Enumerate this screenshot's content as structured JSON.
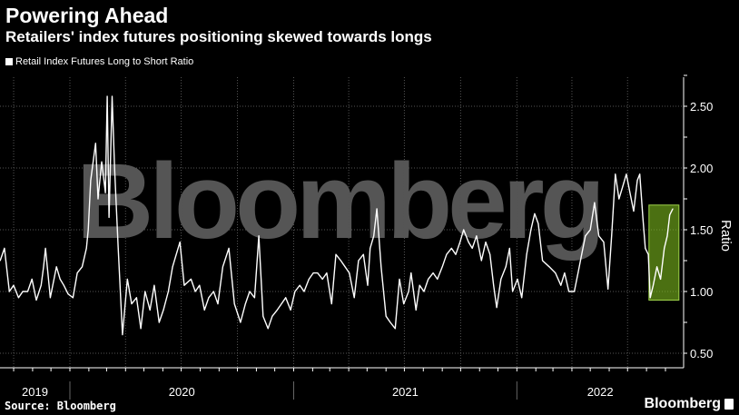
{
  "header": {
    "title": "Powering Ahead",
    "subtitle": "Retailers' index futures positioning skewed towards longs"
  },
  "footer": {
    "source": "Source: Bloomberg",
    "brand": "Bloomberg"
  },
  "watermark": "Bloomberg",
  "chart_data": {
    "type": "line",
    "title": "Powering Ahead",
    "subtitle": "Retailers' index futures positioning skewed towards longs",
    "xlabel": "",
    "ylabel": "Ratio",
    "ylim": [
      0.5,
      2.75
    ],
    "y_ticks": [
      "0.50",
      "1.00",
      "1.50",
      "2.00",
      "2.50"
    ],
    "x_tick_labels": [
      "2019",
      "2020",
      "2021",
      "2022"
    ],
    "grid": true,
    "legend_position": "top-left",
    "y_axis_side": "right",
    "colors": {
      "line": "#ffffff",
      "highlight": "#7dba1e",
      "background": "#000000",
      "watermark": "#555555"
    },
    "highlight": {
      "x_start": "2022-08-05",
      "x_end": "2022-09-23",
      "y_low": 0.93,
      "y_high": 1.7
    },
    "series": [
      {
        "name": "Retail Index Futures Long to Short Ratio",
        "points": [
          [
            "2019-09-09",
            1.25
          ],
          [
            "2019-09-16",
            1.35
          ],
          [
            "2019-09-24",
            1.0
          ],
          [
            "2019-10-01",
            1.05
          ],
          [
            "2019-10-09",
            0.95
          ],
          [
            "2019-10-16",
            1.0
          ],
          [
            "2019-10-24",
            1.0
          ],
          [
            "2019-10-31",
            1.1
          ],
          [
            "2019-11-07",
            0.93
          ],
          [
            "2019-11-15",
            1.05
          ],
          [
            "2019-11-19",
            1.2
          ],
          [
            "2019-11-22",
            1.35
          ],
          [
            "2019-11-30",
            0.95
          ],
          [
            "2019-12-10",
            1.2
          ],
          [
            "2019-12-16",
            1.1
          ],
          [
            "2019-12-22",
            1.05
          ],
          [
            "2019-12-29",
            0.98
          ],
          [
            "2020-01-06",
            0.95
          ],
          [
            "2020-01-13",
            1.15
          ],
          [
            "2020-01-21",
            1.2
          ],
          [
            "2020-01-28",
            1.35
          ],
          [
            "2020-01-31",
            1.5
          ],
          [
            "2020-02-04",
            1.9
          ],
          [
            "2020-02-12",
            2.2
          ],
          [
            "2020-02-16",
            1.75
          ],
          [
            "2020-02-22",
            2.05
          ],
          [
            "2020-02-28",
            1.8
          ],
          [
            "2020-03-02",
            2.58
          ],
          [
            "2020-03-05",
            1.6
          ],
          [
            "2020-03-10",
            2.58
          ],
          [
            "2020-03-14",
            2.0
          ],
          [
            "2020-03-20",
            1.35
          ],
          [
            "2020-03-27",
            0.65
          ],
          [
            "2020-04-04",
            1.1
          ],
          [
            "2020-04-11",
            0.9
          ],
          [
            "2020-04-19",
            0.95
          ],
          [
            "2020-04-26",
            0.7
          ],
          [
            "2020-05-03",
            1.0
          ],
          [
            "2020-05-11",
            0.85
          ],
          [
            "2020-05-18",
            1.05
          ],
          [
            "2020-05-26",
            0.75
          ],
          [
            "2020-06-02",
            0.85
          ],
          [
            "2020-06-10",
            1.0
          ],
          [
            "2020-06-17",
            1.2
          ],
          [
            "2020-06-29",
            1.4
          ],
          [
            "2020-07-06",
            1.05
          ],
          [
            "2020-07-17",
            1.1
          ],
          [
            "2020-07-24",
            1.0
          ],
          [
            "2020-07-31",
            1.05
          ],
          [
            "2020-08-08",
            0.85
          ],
          [
            "2020-08-15",
            0.95
          ],
          [
            "2020-08-23",
            1.0
          ],
          [
            "2020-08-30",
            0.9
          ],
          [
            "2020-09-07",
            1.2
          ],
          [
            "2020-09-17",
            1.35
          ],
          [
            "2020-09-26",
            0.9
          ],
          [
            "2020-10-06",
            0.75
          ],
          [
            "2020-10-14",
            0.9
          ],
          [
            "2020-10-21",
            1.0
          ],
          [
            "2020-10-29",
            0.95
          ],
          [
            "2020-11-05",
            1.45
          ],
          [
            "2020-11-12",
            0.8
          ],
          [
            "2020-11-20",
            0.7
          ],
          [
            "2020-11-27",
            0.8
          ],
          [
            "2020-12-05",
            0.85
          ],
          [
            "2020-12-12",
            0.9
          ],
          [
            "2020-12-19",
            0.95
          ],
          [
            "2020-12-27",
            0.85
          ],
          [
            "2021-01-03",
            1.0
          ],
          [
            "2021-01-11",
            1.05
          ],
          [
            "2021-01-18",
            1.0
          ],
          [
            "2021-01-26",
            1.1
          ],
          [
            "2021-02-02",
            1.15
          ],
          [
            "2021-02-09",
            1.15
          ],
          [
            "2021-02-17",
            1.1
          ],
          [
            "2021-02-24",
            1.15
          ],
          [
            "2021-03-04",
            0.9
          ],
          [
            "2021-03-11",
            1.3
          ],
          [
            "2021-03-19",
            1.25
          ],
          [
            "2021-03-26",
            1.2
          ],
          [
            "2021-04-02",
            1.15
          ],
          [
            "2021-04-10",
            0.95
          ],
          [
            "2021-04-17",
            1.25
          ],
          [
            "2021-04-25",
            1.3
          ],
          [
            "2021-05-02",
            1.05
          ],
          [
            "2021-05-06",
            1.35
          ],
          [
            "2021-05-12",
            1.45
          ],
          [
            "2021-05-17",
            1.67
          ],
          [
            "2021-05-24",
            1.2
          ],
          [
            "2021-06-01",
            0.8
          ],
          [
            "2021-06-08",
            0.75
          ],
          [
            "2021-06-16",
            0.7
          ],
          [
            "2021-06-23",
            1.1
          ],
          [
            "2021-06-30",
            0.9
          ],
          [
            "2021-07-08",
            1.0
          ],
          [
            "2021-07-12",
            1.15
          ],
          [
            "2021-07-20",
            0.85
          ],
          [
            "2021-07-26",
            1.05
          ],
          [
            "2021-08-02",
            1.0
          ],
          [
            "2021-08-09",
            1.1
          ],
          [
            "2021-08-17",
            1.15
          ],
          [
            "2021-08-24",
            1.1
          ],
          [
            "2021-09-01",
            1.2
          ],
          [
            "2021-09-08",
            1.3
          ],
          [
            "2021-09-16",
            1.35
          ],
          [
            "2021-09-23",
            1.3
          ],
          [
            "2021-09-30",
            1.4
          ],
          [
            "2021-10-06",
            1.5
          ],
          [
            "2021-10-14",
            1.4
          ],
          [
            "2021-10-20",
            1.35
          ],
          [
            "2021-10-27",
            1.45
          ],
          [
            "2021-11-04",
            1.25
          ],
          [
            "2021-11-11",
            1.4
          ],
          [
            "2021-11-18",
            1.3
          ],
          [
            "2021-11-24",
            1.05
          ],
          [
            "2021-11-29",
            0.87
          ],
          [
            "2021-12-06",
            1.1
          ],
          [
            "2021-12-14",
            1.2
          ],
          [
            "2021-12-20",
            1.35
          ],
          [
            "2021-12-25",
            1.0
          ],
          [
            "2022-01-02",
            1.1
          ],
          [
            "2022-01-09",
            0.95
          ],
          [
            "2022-01-17",
            1.3
          ],
          [
            "2022-01-24",
            1.5
          ],
          [
            "2022-01-30",
            1.63
          ],
          [
            "2022-02-05",
            1.55
          ],
          [
            "2022-02-12",
            1.25
          ],
          [
            "2022-02-23",
            1.2
          ],
          [
            "2022-03-05",
            1.15
          ],
          [
            "2022-03-14",
            1.05
          ],
          [
            "2022-03-20",
            1.15
          ],
          [
            "2022-03-27",
            1.0
          ],
          [
            "2022-04-05",
            1.0
          ],
          [
            "2022-04-11",
            1.15
          ],
          [
            "2022-04-17",
            1.3
          ],
          [
            "2022-04-23",
            1.45
          ],
          [
            "2022-05-01",
            1.5
          ],
          [
            "2022-05-08",
            1.72
          ],
          [
            "2022-05-15",
            1.45
          ],
          [
            "2022-05-23",
            1.4
          ],
          [
            "2022-05-30",
            1.02
          ],
          [
            "2022-06-05",
            1.45
          ],
          [
            "2022-06-11",
            1.95
          ],
          [
            "2022-06-17",
            1.75
          ],
          [
            "2022-06-23",
            1.85
          ],
          [
            "2022-06-29",
            1.95
          ],
          [
            "2022-07-05",
            1.8
          ],
          [
            "2022-07-11",
            1.65
          ],
          [
            "2022-07-17",
            1.9
          ],
          [
            "2022-07-21",
            1.95
          ],
          [
            "2022-07-26",
            1.6
          ],
          [
            "2022-07-30",
            1.35
          ],
          [
            "2022-08-04",
            1.3
          ],
          [
            "2022-08-07",
            0.95
          ],
          [
            "2022-08-12",
            1.05
          ],
          [
            "2022-08-18",
            1.2
          ],
          [
            "2022-08-24",
            1.1
          ],
          [
            "2022-08-30",
            1.35
          ],
          [
            "2022-09-04",
            1.45
          ],
          [
            "2022-09-08",
            1.62
          ],
          [
            "2022-09-13",
            1.67
          ]
        ]
      }
    ]
  }
}
